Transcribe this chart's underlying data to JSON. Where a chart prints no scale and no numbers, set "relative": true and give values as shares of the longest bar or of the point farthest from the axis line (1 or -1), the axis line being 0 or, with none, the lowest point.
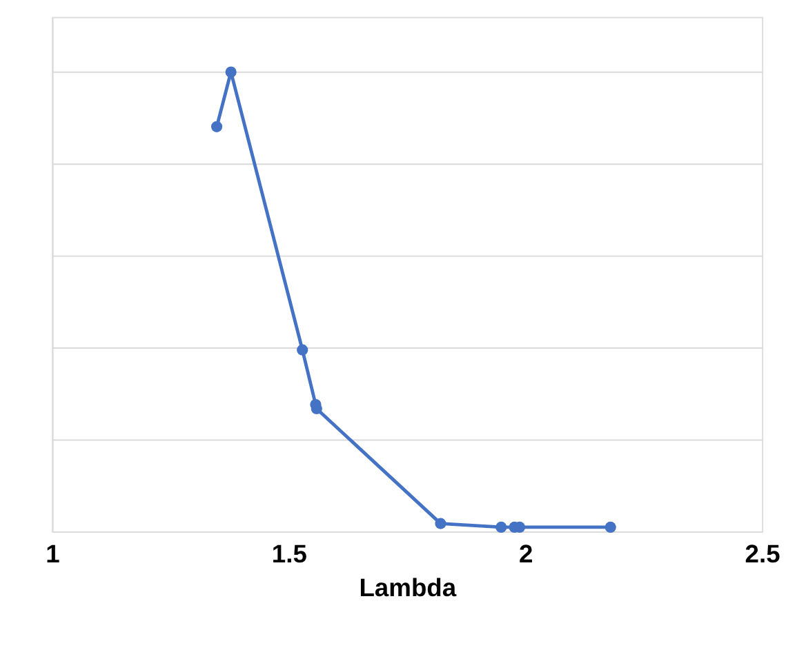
{
  "chart_data": {
    "type": "line",
    "xlabel": "Lambda",
    "relative": true,
    "marker": "circle",
    "grid": "y",
    "xlim": [
      1,
      2.5
    ],
    "xticks": [
      1,
      1.5,
      2,
      2.5
    ],
    "tick_labels": "x",
    "x": [
      1.348,
      1.378,
      1.529,
      1.557,
      1.559,
      1.821,
      1.949,
      1.977,
      1.988,
      2.18
    ],
    "series": [
      {
        "color": "#4472c4",
        "values": [
          0.881,
          1.0,
          0.395,
          0.276,
          0.267,
          0.017,
          0.009,
          0.009,
          0.009,
          0.009
        ]
      }
    ]
  }
}
